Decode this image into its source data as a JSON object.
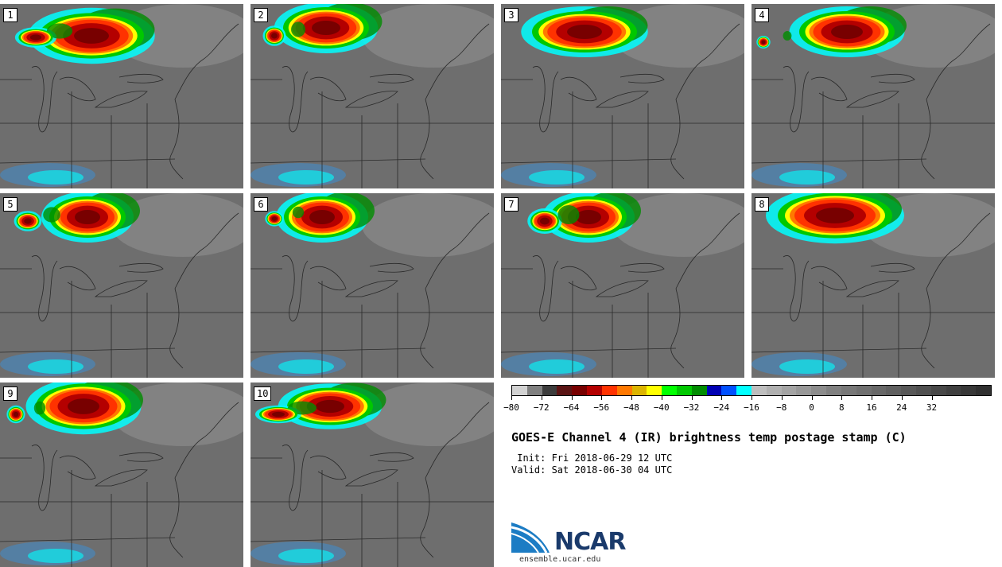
{
  "title": "GOES-E Channel 4 (IR) brightness temp postage stamp (C)",
  "init_text": " Init: Fri 2018-06-29 12 UTC",
  "valid_text": "Valid: Sat 2018-06-30 04 UTC",
  "logo_text": "NCAR",
  "website": "ensemble.ucar.edu",
  "members": [
    "1",
    "2",
    "3",
    "4",
    "5",
    "6",
    "7",
    "8",
    "9",
    "10"
  ],
  "colorbar": {
    "tick_labels": [
      "−80",
      "−72",
      "−64",
      "−56",
      "−48",
      "−40",
      "−32",
      "−24",
      "−16",
      "−8",
      "0",
      "8",
      "16",
      "24",
      "32"
    ],
    "colors": [
      "#d2d2d2",
      "#808080",
      "#3c3c3c",
      "#5a1414",
      "#780000",
      "#b40000",
      "#ff3200",
      "#ff7800",
      "#dcb400",
      "#ffff00",
      "#00ff00",
      "#00c800",
      "#008c00",
      "#0000b4",
      "#0050ff",
      "#00ffff",
      "#bebebe",
      "#b0b0b0",
      "#a4a4a4",
      "#989898",
      "#8c8c8c",
      "#808080",
      "#787878",
      "#707070",
      "#686868",
      "#606060",
      "#585858",
      "#505050",
      "#484848",
      "#404040",
      "#383838",
      "#303030"
    ]
  }
}
